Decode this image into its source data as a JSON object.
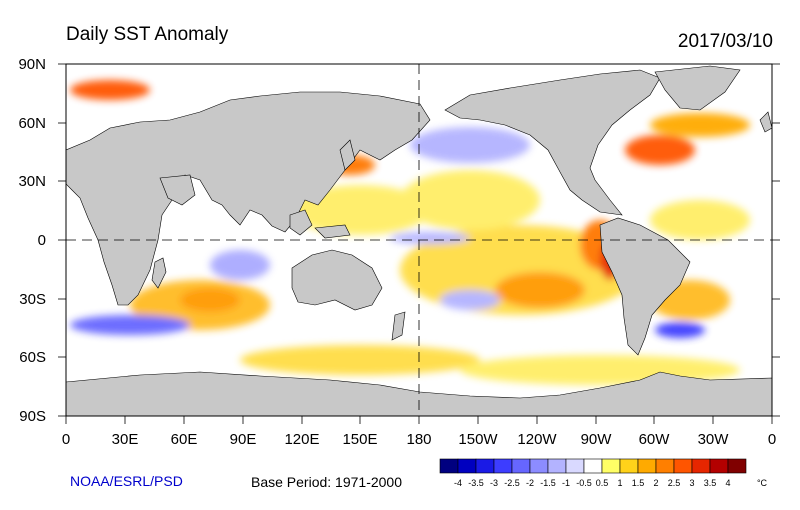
{
  "title": "Daily SST Anomaly",
  "date": "2017/03/10",
  "credit": "NOAA/ESRL/PSD",
  "base_period": "Base Period: 1971-2000",
  "axes": {
    "y_ticks": [
      "90N",
      "60N",
      "30N",
      "0",
      "30S",
      "60S",
      "90S"
    ],
    "x_ticks": [
      "0",
      "30E",
      "60E",
      "90E",
      "120E",
      "150E",
      "180",
      "150W",
      "120W",
      "90W",
      "60W",
      "30W",
      "0"
    ]
  },
  "colorbar": {
    "unit": "°C",
    "labels": [
      "-4",
      "-3.5",
      "-3",
      "-2.5",
      "-2",
      "-1.5",
      "-1",
      "-0.5",
      "0.5",
      "1",
      "1.5",
      "2",
      "2.5",
      "3",
      "3.5",
      "4"
    ],
    "colors": [
      "#000080",
      "#0000c0",
      "#1a1ae6",
      "#3d3dff",
      "#6666ff",
      "#8c8cff",
      "#b3b3ff",
      "#d9d9ff",
      "#ffffff",
      "#ffff66",
      "#ffd21a",
      "#ffaa00",
      "#ff7f00",
      "#ff5500",
      "#e62600",
      "#b30000",
      "#800000"
    ]
  },
  "colors": {
    "land": "#c8c8c8",
    "ocean_neutral": "#ffffff",
    "warm": "#ffcc33",
    "cool": "#b3b3ff"
  }
}
